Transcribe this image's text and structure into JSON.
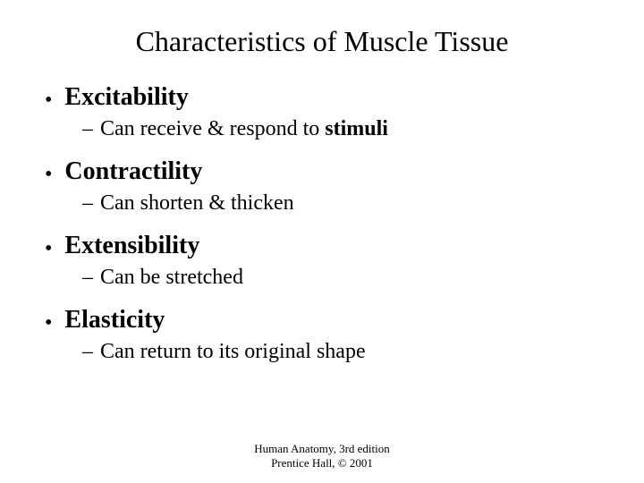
{
  "title": "Characteristics of Muscle Tissue",
  "items": [
    {
      "heading": "Excitability",
      "sub_prefix": "Can receive & respond to ",
      "sub_bold": "stimuli",
      "sub_suffix": ""
    },
    {
      "heading": "Contractility",
      "sub_prefix": "Can shorten & thicken",
      "sub_bold": "",
      "sub_suffix": ""
    },
    {
      "heading": "Extensibility",
      "sub_prefix": "Can be stretched",
      "sub_bold": "",
      "sub_suffix": ""
    },
    {
      "heading": "Elasticity",
      "sub_prefix": "Can return to its original shape",
      "sub_bold": "",
      "sub_suffix": ""
    }
  ],
  "footer": {
    "line1": "Human Anatomy, 3rd edition",
    "line2": "Prentice Hall, © 2001"
  },
  "style": {
    "background_color": "#ffffff",
    "text_color": "#000000",
    "font_family": "Times New Roman",
    "title_fontsize": 32,
    "bullet_fontsize": 28,
    "sub_fontsize": 24,
    "footer_fontsize": 13
  }
}
